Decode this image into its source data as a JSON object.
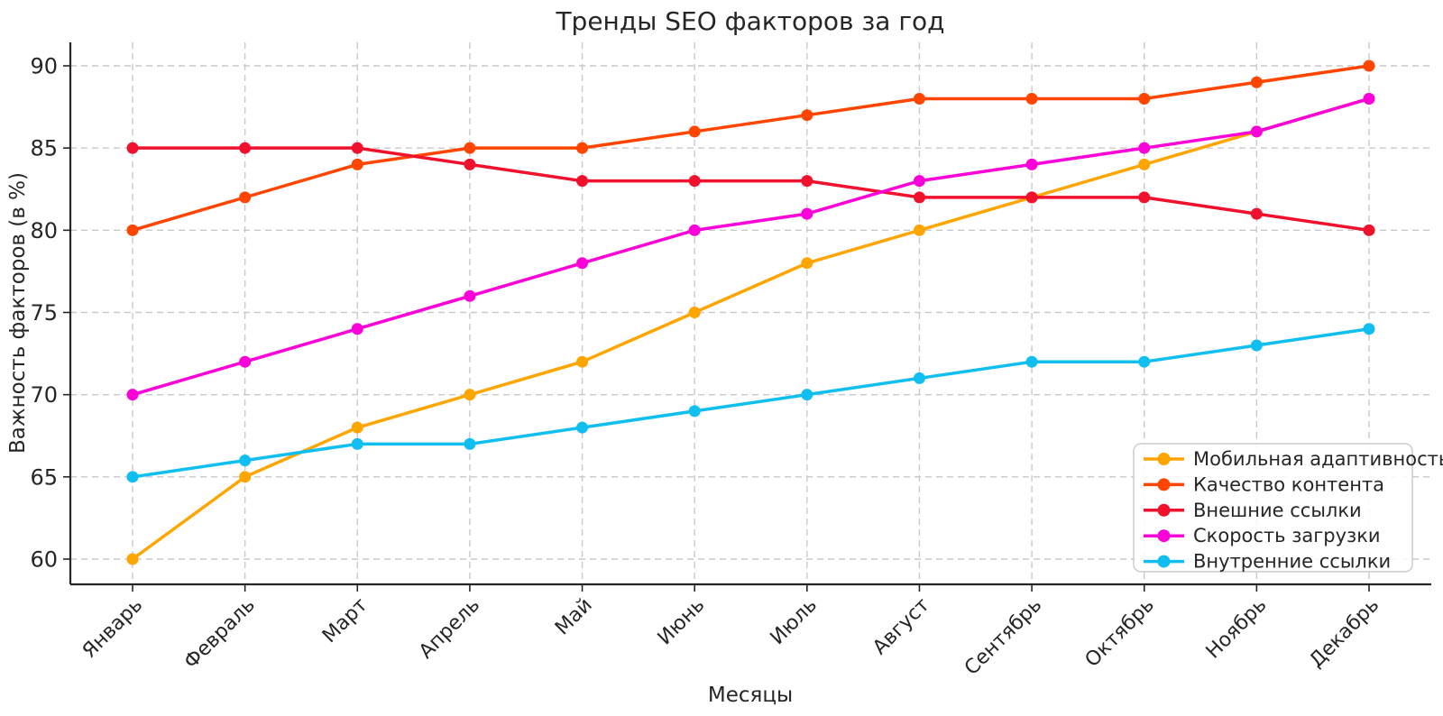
{
  "chart_data": {
    "type": "line",
    "title": "Тренды SEO факторов за год",
    "xlabel": "Месяцы",
    "ylabel": "Важность факторов (в %)",
    "categories": [
      "Январь",
      "Февраль",
      "Март",
      "Апрель",
      "Май",
      "Июнь",
      "Июль",
      "Август",
      "Сентябрь",
      "Октябрь",
      "Ноябрь",
      "Декабрь"
    ],
    "yticks": [
      60,
      65,
      70,
      75,
      80,
      85,
      90
    ],
    "ylim": [
      58.5,
      91.5
    ],
    "grid": true,
    "grid_style": "dashed",
    "legend_position": "lower right",
    "series": [
      {
        "name": "Мобильная адаптивность",
        "color": "#FFA500",
        "values": [
          60,
          65,
          68,
          70,
          72,
          75,
          78,
          80,
          82,
          84,
          86,
          88
        ]
      },
      {
        "name": "Качество контента",
        "color": "#FF4500",
        "values": [
          80,
          82,
          84,
          85,
          85,
          86,
          87,
          88,
          88,
          88,
          89,
          90
        ]
      },
      {
        "name": "Внешние ссылки",
        "color": "#F0112D",
        "values": [
          85,
          85,
          85,
          84,
          83,
          83,
          83,
          82,
          82,
          82,
          81,
          80
        ]
      },
      {
        "name": "Скорость загрузки",
        "color": "#FB00D8",
        "values": [
          70,
          72,
          74,
          76,
          78,
          80,
          81,
          83,
          84,
          85,
          86,
          88
        ]
      },
      {
        "name": "Внутренние ссылки",
        "color": "#10BFEF",
        "values": [
          65,
          66,
          67,
          67,
          68,
          69,
          70,
          71,
          72,
          72,
          73,
          74
        ]
      }
    ],
    "colors": {
      "spine": "#262626",
      "grid": "#c9c9c9",
      "tick_label": "#262626",
      "legend_border": "#cccccc",
      "legend_bg": "#ffffff"
    }
  }
}
